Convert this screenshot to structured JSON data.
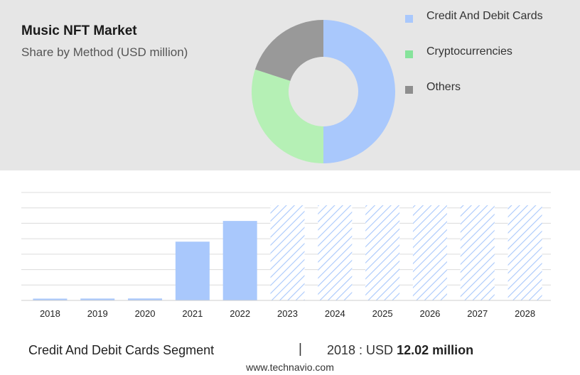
{
  "header": {
    "title": "Music NFT Market",
    "subtitle": "Share by Method (USD million)"
  },
  "chart_data": [
    {
      "type": "pie",
      "variant": "donut",
      "slices": [
        {
          "label": "Credit And Debit Cards",
          "value": 50,
          "color": "#a9c8fc"
        },
        {
          "label": "Cryptocurrencies",
          "value": 30,
          "color": "#b5f0b5"
        },
        {
          "label": "Others",
          "value": 20,
          "color": "#999999"
        }
      ],
      "legend": "right",
      "legend_colors": [
        "#a9c8fc",
        "#86e39b",
        "#8e8e8e"
      ]
    },
    {
      "type": "bar",
      "categories": [
        "2018",
        "2019",
        "2020",
        "2021",
        "2022",
        "2023",
        "2024",
        "2025",
        "2026",
        "2027",
        "2028"
      ],
      "values": [
        12.02,
        12.5,
        13,
        392,
        530,
        null,
        null,
        null,
        null,
        null,
        null
      ],
      "forecast_categories": [
        "2023",
        "2024",
        "2025",
        "2026",
        "2027",
        "2028"
      ],
      "ylim": [
        0,
        720
      ],
      "grid": true,
      "bar_color": "#a9c8fc",
      "forecast_color": "#a9c8fc"
    }
  ],
  "footer": {
    "segment": "Credit And Debit Cards Segment",
    "divider": "|",
    "value_prefix": "2018 : USD",
    "value_bold": "12.02 million",
    "source": "www.technavio.com"
  }
}
